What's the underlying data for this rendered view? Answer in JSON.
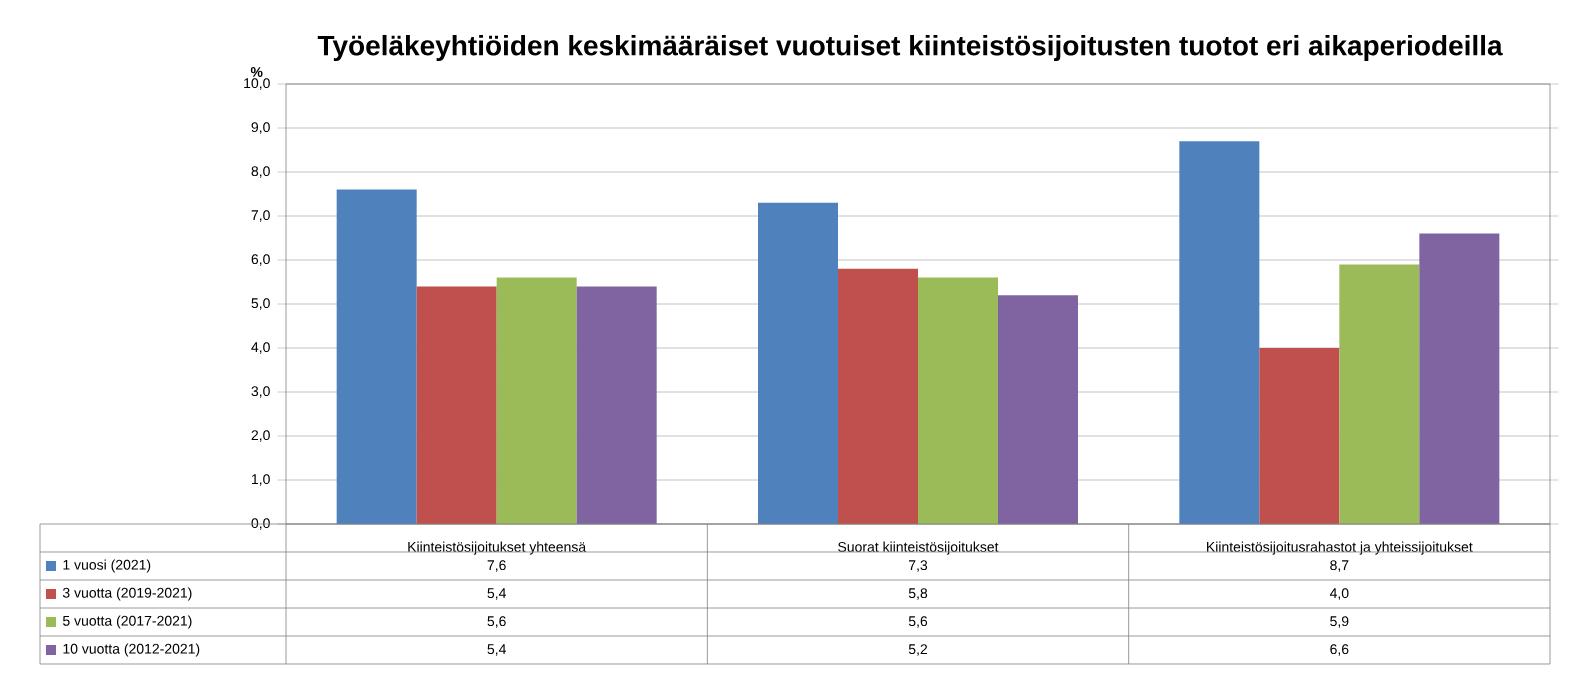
{
  "chart_data": {
    "type": "bar",
    "title": "Työeläkeyhtiöiden keskimääräiset vuotuiset kiinteistösijoitusten tuotot eri aikaperiodeilla",
    "ylabel": "%",
    "categories": [
      "Kiinteistösijoitukset yhteensä",
      "Suorat kiinteistösijoitukset",
      "Kiinteistösijoitusrahastot ja yhteissijoitukset"
    ],
    "series": [
      {
        "name": "1 vuosi (2021)",
        "color": "#4f81bd",
        "values": [
          7.6,
          7.3,
          8.7
        ],
        "value_labels": [
          "7,6",
          "7,3",
          "8,7"
        ]
      },
      {
        "name": "3 vuotta (2019-2021)",
        "color": "#c0504d",
        "values": [
          5.4,
          5.8,
          4.0
        ],
        "value_labels": [
          "5,4",
          "5,8",
          "4,0"
        ]
      },
      {
        "name": "5 vuotta (2017-2021)",
        "color": "#9bbb59",
        "values": [
          5.6,
          5.6,
          5.9
        ],
        "value_labels": [
          "5,6",
          "5,6",
          "5,9"
        ]
      },
      {
        "name": "10 vuotta (2012-2021)",
        "color": "#8064a2",
        "values": [
          5.4,
          5.2,
          6.6
        ],
        "value_labels": [
          "5,4",
          "5,2",
          "6,6"
        ]
      }
    ],
    "ylim": [
      0,
      10
    ],
    "yticks": [
      {
        "value": 0,
        "label": "0,0"
      },
      {
        "value": 1,
        "label": "1,0"
      },
      {
        "value": 2,
        "label": "2,0"
      },
      {
        "value": 3,
        "label": "3,0"
      },
      {
        "value": 4,
        "label": "4,0"
      },
      {
        "value": 5,
        "label": "5,0"
      },
      {
        "value": 6,
        "label": "6,0"
      },
      {
        "value": 7,
        "label": "7,0"
      },
      {
        "value": 8,
        "label": "8,0"
      },
      {
        "value": 9,
        "label": "9,0"
      },
      {
        "value": 10,
        "label": "10,0"
      }
    ],
    "grid": "y",
    "legend": "bottom"
  }
}
